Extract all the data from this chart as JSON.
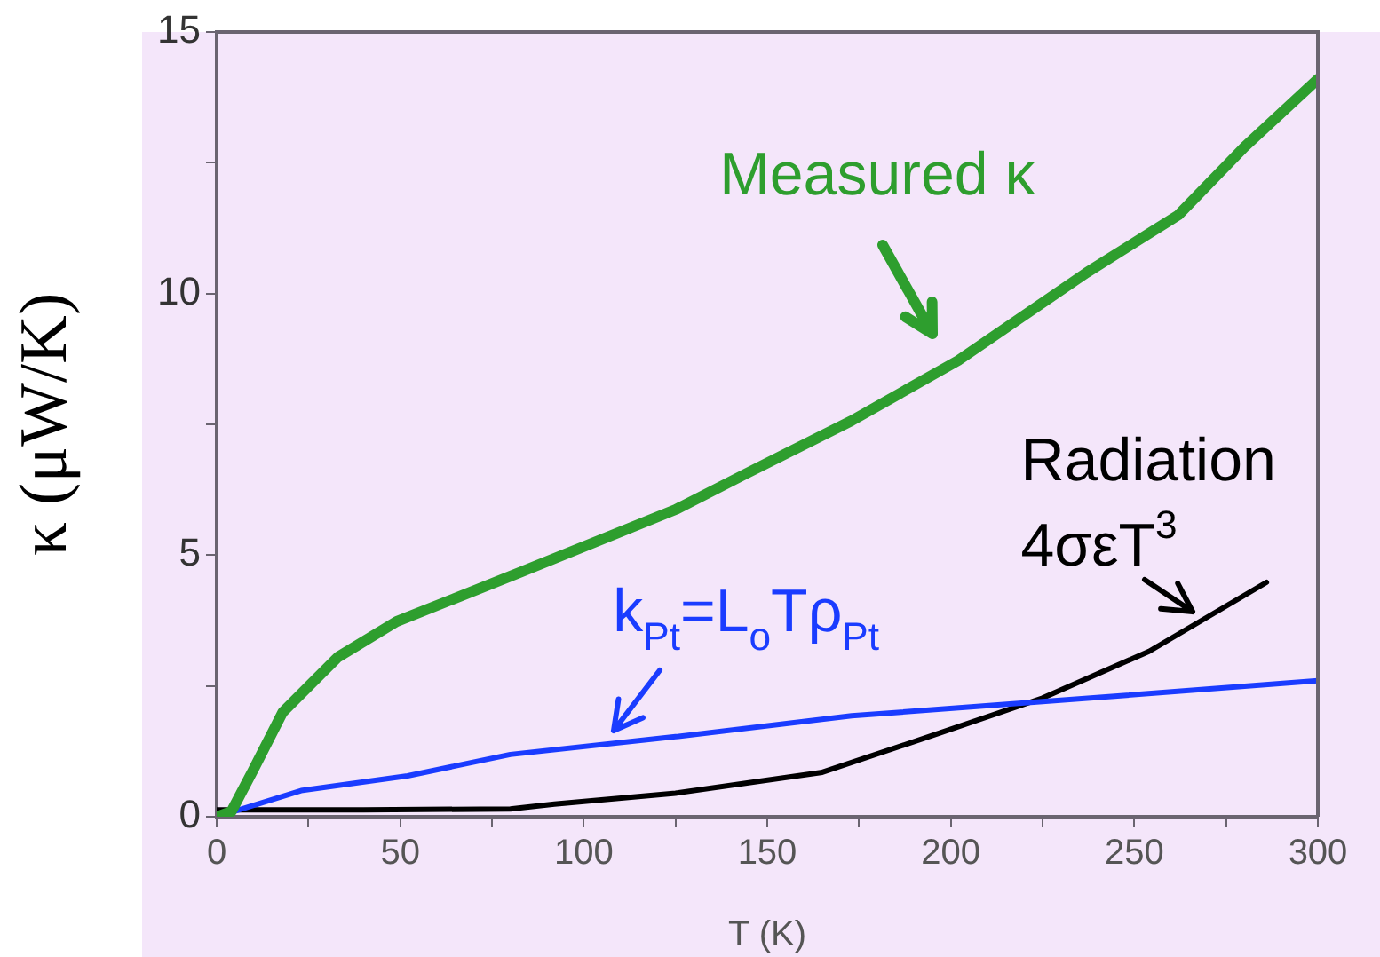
{
  "chart_data": {
    "type": "line",
    "xlabel": "T (K)",
    "ylabel": "κ (μW/K)",
    "xlim": [
      0,
      300
    ],
    "ylim": [
      0,
      15
    ],
    "xticks": [
      0,
      {
        "value": 25,
        "label": null
      },
      50,
      {
        "value": 75,
        "label": null
      },
      100,
      {
        "value": 125,
        "label": null
      },
      150,
      {
        "value": 175,
        "label": null
      },
      200,
      {
        "value": 225,
        "label": null
      },
      250,
      {
        "value": 275,
        "label": null
      },
      300
    ],
    "yticks": [
      0,
      {
        "value": 2.5,
        "label": null
      },
      5,
      {
        "value": 7.5,
        "label": null
      },
      10,
      {
        "value": 12.5,
        "label": null
      },
      15
    ],
    "grid": false,
    "legend": false,
    "marker": "none",
    "line_style": "solid",
    "series": [
      {
        "color": "#2e9e2e",
        "x": [
          0,
          4,
          10,
          18,
          33,
          49,
          83,
          125,
          144,
          173,
          202,
          237,
          262,
          280,
          300
        ],
        "values": [
          0,
          0.1,
          0.9,
          2.0,
          3.05,
          3.73,
          4.68,
          5.87,
          6.55,
          7.57,
          8.72,
          10.4,
          11.5,
          12.8,
          14.1
        ]
      },
      {
        "color": "#1a3cff",
        "x": [
          0,
          23,
          52,
          80,
          125,
          173,
          225,
          300
        ],
        "values": [
          0,
          0.5,
          0.78,
          1.19,
          1.53,
          1.93,
          2.2,
          2.6
        ]
      },
      {
        "color": "#000000",
        "x": [
          0,
          40,
          80,
          92,
          125,
          165,
          197,
          225,
          254,
          286
        ],
        "values": [
          0.13,
          0.13,
          0.15,
          0.24,
          0.45,
          0.85,
          1.6,
          2.27,
          3.16,
          4.48
        ]
      }
    ],
    "annotations": [
      {
        "text": "Measured κ",
        "x": 196,
        "y": 8.5
      },
      {
        "text": "k$_{Pt}$=L$_{o}$Tρ$_{Pt}$",
        "x": 107,
        "y": 1.37
      },
      {
        "text": "Radiation",
        "x": 266,
        "y": 3.65
      },
      {
        "text": "4σεT$^{3}$",
        "x": 266,
        "y": 3.65
      }
    ]
  }
}
